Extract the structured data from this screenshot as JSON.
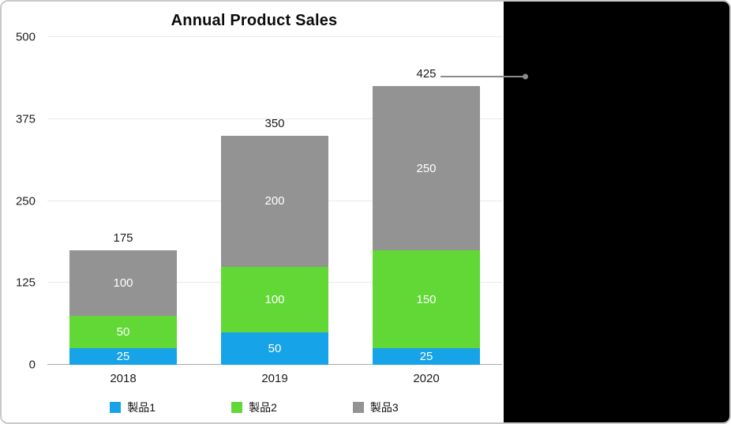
{
  "chart_data": {
    "type": "bar",
    "stacked": true,
    "title": "Annual Product Sales",
    "categories": [
      "2018",
      "2019",
      "2020"
    ],
    "series": [
      {
        "name": "製品1",
        "color": "#16a3e8",
        "values": [
          25,
          50,
          25
        ]
      },
      {
        "name": "製品2",
        "color": "#61d836",
        "values": [
          50,
          100,
          150
        ]
      },
      {
        "name": "製品3",
        "color": "#939393",
        "values": [
          100,
          200,
          250
        ]
      }
    ],
    "totals": [
      175,
      350,
      425
    ],
    "segment_labels": [
      [
        25,
        50,
        100
      ],
      [
        50,
        100,
        200
      ],
      [
        25,
        150,
        250
      ]
    ],
    "ylim": [
      0,
      500
    ],
    "y_ticks": [
      0,
      125,
      250,
      375,
      500
    ],
    "grid": true,
    "legend_position": "bottom",
    "annotation": {
      "type": "callout-line",
      "points_to_total_label": "425"
    }
  },
  "panel": {
    "background": "#000000"
  }
}
